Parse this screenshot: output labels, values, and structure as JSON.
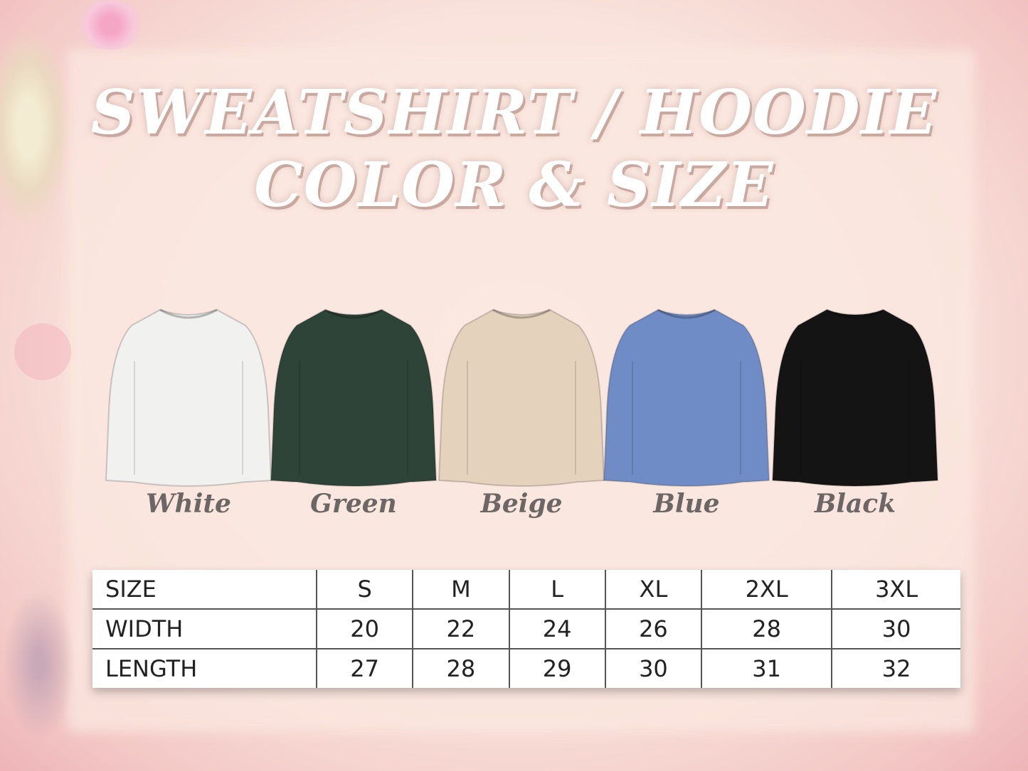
{
  "title": {
    "line1": "SWEATSHIRT / HOODIE",
    "line2": "COLOR & SIZE"
  },
  "colors": [
    {
      "name": "White",
      "hex": "#f1f1ef"
    },
    {
      "name": "Green",
      "hex": "#2f4438"
    },
    {
      "name": "Beige",
      "hex": "#e5d2bd"
    },
    {
      "name": "Blue",
      "hex": "#6f8cc7"
    },
    {
      "name": "Black",
      "hex": "#141414"
    }
  ],
  "size_table": {
    "headers": [
      "SIZE",
      "S",
      "M",
      "L",
      "XL",
      "2XL",
      "3XL"
    ],
    "rows": [
      [
        "WIDTH",
        "20",
        "22",
        "24",
        "26",
        "28",
        "30"
      ],
      [
        "LENGTH",
        "27",
        "28",
        "29",
        "30",
        "31",
        "32"
      ]
    ]
  }
}
